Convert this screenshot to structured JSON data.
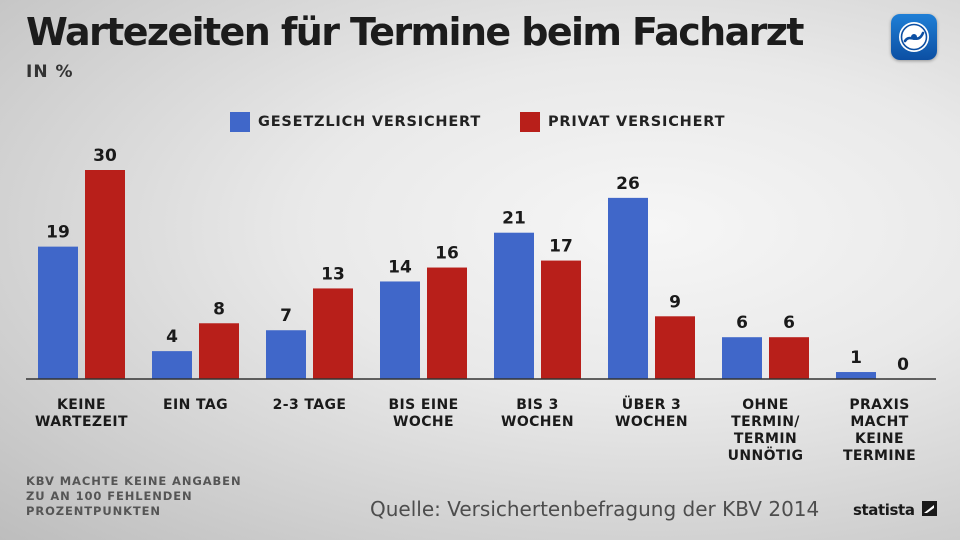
{
  "title": "Wartezeiten für Termine beim Facharzt",
  "unit": "IN %",
  "legend": [
    {
      "label": "GESETZLICH VERSICHERT",
      "color": "#4067c9"
    },
    {
      "label": "PRIVAT VERSICHERT",
      "color": "#b81f1a"
    }
  ],
  "chart_data": {
    "type": "bar",
    "title": "Wartezeiten für Termine beim Facharzt",
    "ylabel": "IN %",
    "ylim": [
      0,
      30
    ],
    "grid": false,
    "legend_position": "top",
    "categories": [
      [
        "KEINE",
        "WARTEZEIT"
      ],
      [
        "EIN TAG"
      ],
      [
        "2-3 TAGE"
      ],
      [
        "BIS EINE",
        "WOCHE"
      ],
      [
        "BIS 3",
        "WOCHEN"
      ],
      [
        "ÜBER 3",
        "WOCHEN"
      ],
      [
        "OHNE",
        "TERMIN/",
        "TERMIN",
        "UNNÖTIG"
      ],
      [
        "PRAXIS",
        "MACHT",
        "KEINE",
        "TERMINE"
      ]
    ],
    "series": [
      {
        "name": "GESETZLICH VERSICHERT",
        "color": "#4067c9",
        "values": [
          19,
          4,
          7,
          14,
          21,
          26,
          6,
          1
        ]
      },
      {
        "name": "PRIVAT VERSICHERT",
        "color": "#b81f1a",
        "values": [
          30,
          8,
          13,
          16,
          17,
          9,
          6,
          0
        ]
      }
    ]
  },
  "footnote": "KBV MACHTE KEINE ANGABEN\nZU AN 100 FEHLENDEN\nPROZENTPUNKTEN",
  "source": "Quelle: Versichertenbefragung der KBV 2014",
  "brand": "statista",
  "logo_icon": "tagesschau-logo-icon"
}
